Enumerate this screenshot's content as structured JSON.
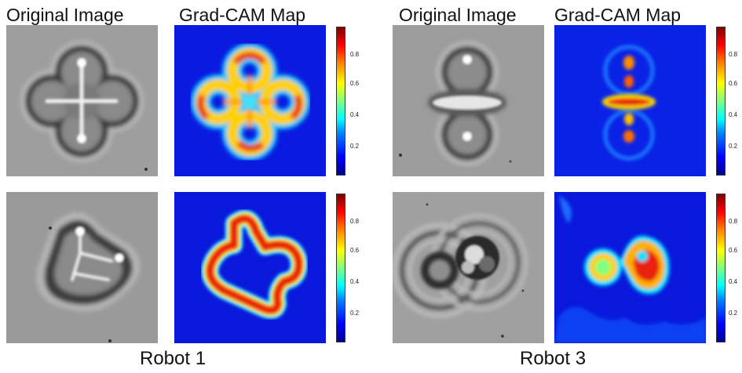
{
  "headers": {
    "left_original": "Original Image",
    "left_gradcam": "Grad-CAM Map",
    "right_original": "Original Image",
    "right_gradcam": "Grad-CAM Map"
  },
  "robot_labels": {
    "left": "Robot 1",
    "right": "Robot 3"
  },
  "colorbar_ticks": [
    "0.8",
    "0.6",
    "0.4",
    "0.2"
  ],
  "colors": {
    "cam_background": "#0a1ae0",
    "cam_hot": "#e8200a",
    "micrograph_background": "#9c9c9c"
  }
}
